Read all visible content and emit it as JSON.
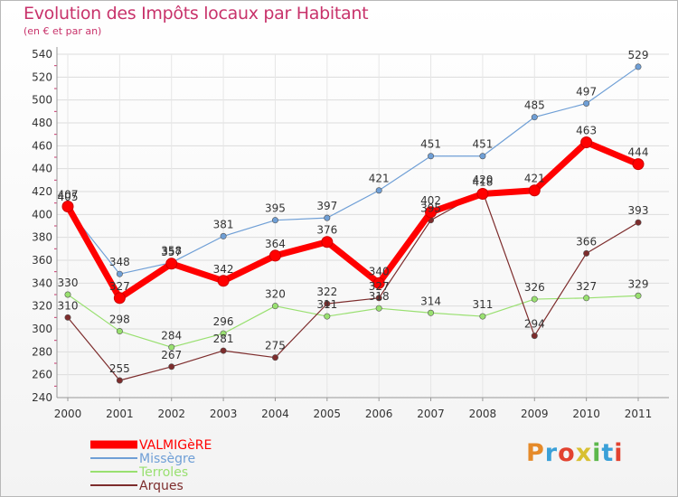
{
  "header": {
    "title": "Evolution des Impôts locaux par Habitant",
    "subtitle": "(en € et par an)"
  },
  "logo": {
    "text": "Proxiti",
    "colors": [
      "#e58a2a",
      "#3aa0d8",
      "#e2422f",
      "#d8c032",
      "#5cb84c",
      "#3aa0d8",
      "#e2422f"
    ]
  },
  "chart_data": {
    "type": "line",
    "title": "Evolution des Impôts locaux par Habitant",
    "subtitle": "(en € et par an)",
    "xlabel": "",
    "ylabel": "",
    "x": [
      "2000",
      "2001",
      "2002",
      "2003",
      "2004",
      "2005",
      "2006",
      "2007",
      "2008",
      "2009",
      "2010",
      "2011"
    ],
    "yticks": [
      240,
      260,
      280,
      300,
      320,
      340,
      360,
      380,
      400,
      420,
      440,
      460,
      480,
      500,
      520,
      540
    ],
    "ylim": [
      240,
      540
    ],
    "grid": true,
    "legend_position": "bottom-left",
    "series": [
      {
        "name": "VALMIGèRE",
        "color": "#ff0000",
        "values": [
          407,
          327,
          357,
          342,
          364,
          376,
          340,
          402,
          418,
          421,
          463,
          444
        ]
      },
      {
        "name": "Missègre",
        "color": "#6f9fd6",
        "values": [
          405,
          348,
          358,
          381,
          395,
          397,
          421,
          451,
          451,
          485,
          497,
          529
        ]
      },
      {
        "name": "Terroles",
        "color": "#99e070",
        "values": [
          330,
          298,
          284,
          296,
          320,
          311,
          318,
          314,
          311,
          326,
          327,
          329
        ]
      },
      {
        "name": "Arques",
        "color": "#7d2c2c",
        "values": [
          310,
          255,
          267,
          281,
          275,
          322,
          327,
          395,
          420,
          294,
          366,
          393
        ]
      }
    ]
  }
}
